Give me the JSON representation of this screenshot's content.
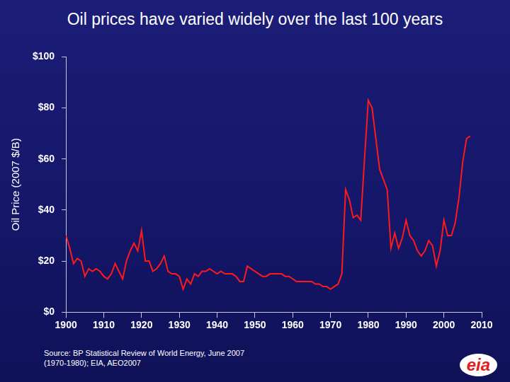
{
  "chart_data": {
    "type": "line",
    "title": "Oil prices have varied widely over the last 100 years",
    "y_label": "Oil Price (2007 $/B)",
    "source": "Source: BP Statistical Review of World Energy, June 2007 (1970-1980); EIA, AEO2007",
    "logo_text": "eia",
    "color": "#ff1a1a",
    "grid": false,
    "xlim": [
      1900,
      2010
    ],
    "xticks": [
      1900,
      1910,
      1920,
      1930,
      1940,
      1950,
      1960,
      1970,
      1980,
      1990,
      2000,
      2010
    ],
    "ylim": [
      0,
      100
    ],
    "yticks": [
      {
        "value": 0,
        "label": "$0"
      },
      {
        "value": 20,
        "label": "$20"
      },
      {
        "value": 40,
        "label": "$40"
      },
      {
        "value": 60,
        "label": "$60"
      },
      {
        "value": 80,
        "label": "$80"
      },
      {
        "value": 100,
        "label": "$100"
      }
    ],
    "x": [
      1900,
      1901,
      1902,
      1903,
      1904,
      1905,
      1906,
      1907,
      1908,
      1909,
      1910,
      1911,
      1912,
      1913,
      1914,
      1915,
      1916,
      1917,
      1918,
      1919,
      1920,
      1921,
      1922,
      1923,
      1924,
      1925,
      1926,
      1927,
      1928,
      1929,
      1930,
      1931,
      1932,
      1933,
      1934,
      1935,
      1936,
      1937,
      1938,
      1939,
      1940,
      1941,
      1942,
      1943,
      1944,
      1945,
      1946,
      1947,
      1948,
      1949,
      1950,
      1951,
      1952,
      1953,
      1954,
      1955,
      1956,
      1957,
      1958,
      1959,
      1960,
      1961,
      1962,
      1963,
      1964,
      1965,
      1966,
      1967,
      1968,
      1969,
      1970,
      1971,
      1972,
      1973,
      1974,
      1975,
      1976,
      1977,
      1978,
      1979,
      1980,
      1981,
      1982,
      1983,
      1984,
      1985,
      1986,
      1987,
      1988,
      1989,
      1990,
      1991,
      1992,
      1993,
      1994,
      1995,
      1996,
      1997,
      1998,
      1999,
      2000,
      2001,
      2002,
      2003,
      2004,
      2005,
      2006,
      2007
    ],
    "values": [
      30,
      25,
      19,
      21,
      20,
      14,
      17,
      16,
      17,
      16,
      14,
      13,
      15,
      19,
      16,
      13,
      20,
      24,
      27,
      24,
      32,
      20,
      20,
      16,
      17,
      19,
      22,
      16,
      15,
      15,
      14,
      9,
      13,
      11,
      15,
      14,
      16,
      16,
      17,
      16,
      15,
      16,
      15,
      15,
      15,
      14,
      12,
      12,
      18,
      17,
      16,
      15,
      14,
      14,
      15,
      15,
      15,
      15,
      14,
      14,
      13,
      12,
      12,
      12,
      12,
      12,
      11,
      11,
      10,
      10,
      9,
      10,
      11,
      15,
      48,
      44,
      37,
      38,
      36,
      60,
      83,
      80,
      68,
      56,
      52,
      48,
      25,
      31,
      25,
      29,
      36,
      30,
      28,
      24,
      22,
      24,
      28,
      26,
      18,
      24,
      36,
      30,
      30,
      35,
      45,
      59,
      68,
      69
    ]
  }
}
